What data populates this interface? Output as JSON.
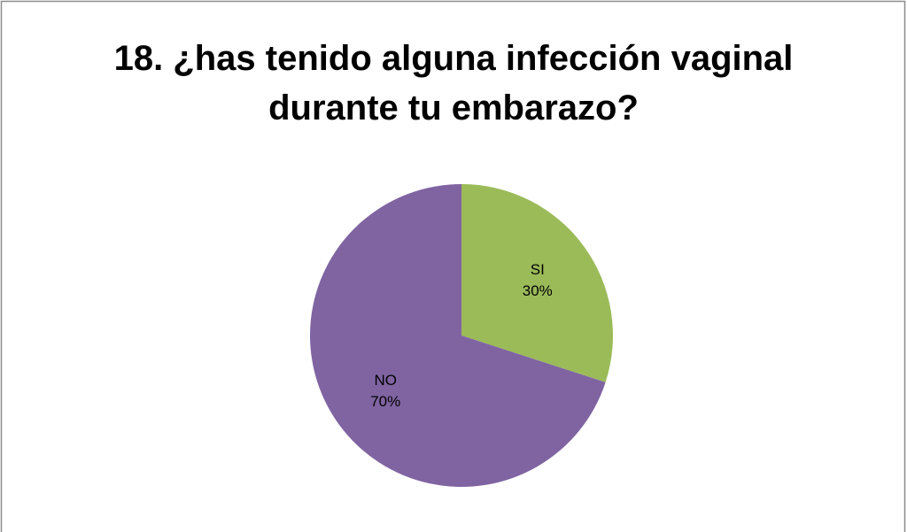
{
  "chart_data": {
    "type": "pie",
    "title": "18. ¿has tenido alguna infección vaginal durante tu embarazo?",
    "categories": [
      "SI",
      "NO"
    ],
    "values": [
      30,
      70
    ],
    "value_labels": [
      "30%",
      "70%"
    ],
    "colors": [
      "#9bbb59",
      "#8064a2"
    ]
  }
}
